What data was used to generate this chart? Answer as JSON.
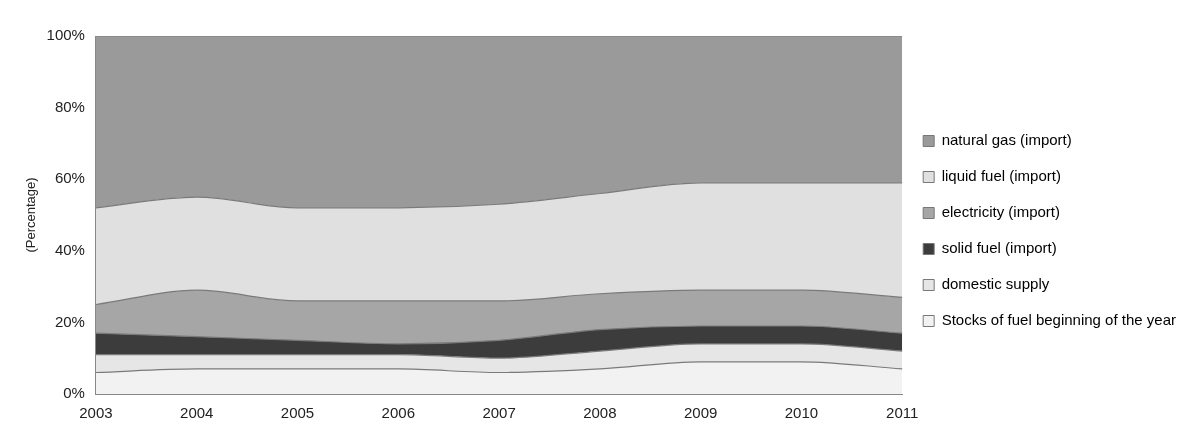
{
  "chart_data": {
    "type": "area",
    "stacked": true,
    "ylabel": "(Percentage)",
    "categories": [
      "2003",
      "2004",
      "2005",
      "2006",
      "2007",
      "2008",
      "2009",
      "2010",
      "2011"
    ],
    "series": [
      {
        "name": "Stocks of fuel beginning of the year",
        "color": "#f2f2f2",
        "values": [
          6,
          7,
          7,
          7,
          6,
          7,
          9,
          9,
          7
        ]
      },
      {
        "name": "domestic supply",
        "color": "#e6e6e6",
        "values": [
          5,
          4,
          4,
          4,
          4,
          5,
          5,
          5,
          5
        ]
      },
      {
        "name": "solid fuel (import)",
        "color": "#3c3c3c",
        "values": [
          6,
          5,
          4,
          3,
          5,
          6,
          5,
          5,
          5
        ]
      },
      {
        "name": "electricity (import)",
        "color": "#a6a6a6",
        "values": [
          8,
          13,
          11,
          12,
          11,
          10,
          10,
          10,
          10
        ]
      },
      {
        "name": "liquid fuel (import)",
        "color": "#e0e0e0",
        "values": [
          27,
          26,
          26,
          26,
          27,
          28,
          30,
          30,
          32
        ]
      },
      {
        "name": "natural gas (import)",
        "color": "#9a9a9a",
        "values": [
          48,
          45,
          48,
          48,
          47,
          44,
          41,
          41,
          41
        ]
      }
    ],
    "ylim": [
      0,
      100
    ],
    "yticks": [
      {
        "value": 0,
        "label": "0%"
      },
      {
        "value": 20,
        "label": "20%"
      },
      {
        "value": 40,
        "label": "40%"
      },
      {
        "value": 60,
        "label": "60%"
      },
      {
        "value": 80,
        "label": "80%"
      },
      {
        "value": 100,
        "label": "100%"
      }
    ],
    "grid": false,
    "legend": "right"
  }
}
